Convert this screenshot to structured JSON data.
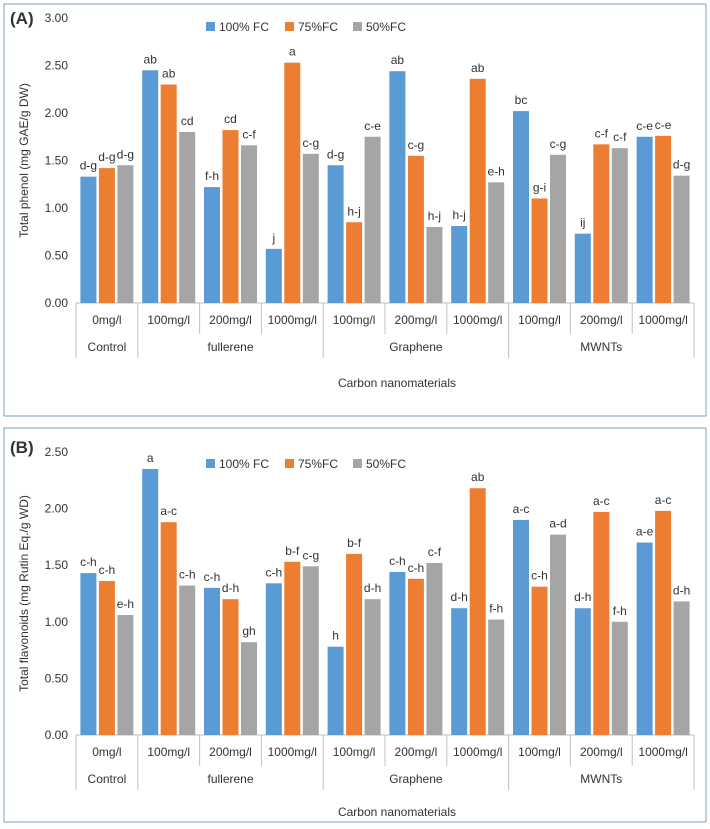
{
  "chart_data": [
    {
      "panel_label": "(A)",
      "type": "bar",
      "ylabel": "Total phenol (mg GAE/g DW)",
      "xlabel": "Carbon nanomaterials",
      "ylim": [
        0,
        3
      ],
      "yticks": [
        "0.00",
        "0.50",
        "1.00",
        "1.50",
        "2.00",
        "2.50",
        "3.00"
      ],
      "categories": [
        "0mg/l",
        "100mg/l",
        "200mg/l",
        "1000mg/l",
        "100mg/l",
        "200mg/l",
        "1000mg/l",
        "100mg/l",
        "200mg/l",
        "1000mg/l"
      ],
      "groups": [
        {
          "label": "Control",
          "count": 1
        },
        {
          "label": "fullerene",
          "count": 3
        },
        {
          "label": "Graphene",
          "count": 3
        },
        {
          "label": "MWNTs",
          "count": 3
        }
      ],
      "legend_position": "top-center",
      "series": [
        {
          "name": "100% FC",
          "color": "#5b9bd5",
          "values": [
            1.33,
            2.45,
            1.22,
            0.57,
            1.45,
            2.44,
            0.81,
            2.02,
            0.73,
            1.75
          ],
          "labels": [
            "d-g",
            "ab",
            "f-h",
            "j",
            "d-g",
            "ab",
            "h-j",
            "bc",
            "ij",
            "c-e"
          ]
        },
        {
          "name": "75%FC",
          "color": "#ed7d31",
          "values": [
            1.42,
            2.3,
            1.82,
            2.53,
            0.85,
            1.55,
            2.36,
            1.1,
            1.67,
            1.76
          ],
          "labels": [
            "d-g",
            "ab",
            "cd",
            "a",
            "h-j",
            "c-g",
            "ab",
            "g-i",
            "c-f",
            "c-e"
          ]
        },
        {
          "name": "50%FC",
          "color": "#a5a5a5",
          "values": [
            1.45,
            1.8,
            1.66,
            1.57,
            1.75,
            0.8,
            1.27,
            1.56,
            1.63,
            1.34
          ],
          "labels": [
            "d-g",
            "cd",
            "c-f",
            "c-g",
            "c-e",
            "h-j",
            "e-h",
            "c-g",
            "c-f",
            "d-g"
          ]
        }
      ]
    },
    {
      "panel_label": "(B)",
      "type": "bar",
      "ylabel": "Total flavonoids (mg Rutin Eq./g WD)",
      "xlabel": "Carbon nanomaterials",
      "ylim": [
        0,
        2.5
      ],
      "yticks": [
        "0.00",
        "0.50",
        "1.00",
        "1.50",
        "2.00",
        "2.50"
      ],
      "categories": [
        "0mg/l",
        "100mg/l",
        "200mg/l",
        "1000mg/l",
        "100mg/l",
        "200mg/l",
        "1000mg/l",
        "100mg/l",
        "200mg/l",
        "1000mg/l"
      ],
      "groups": [
        {
          "label": "Control",
          "count": 1
        },
        {
          "label": "fullerene",
          "count": 3
        },
        {
          "label": "Graphene",
          "count": 3
        },
        {
          "label": "MWNTs",
          "count": 3
        }
      ],
      "legend_position": "top-center",
      "series": [
        {
          "name": "100% FC",
          "color": "#5b9bd5",
          "values": [
            1.43,
            2.35,
            1.3,
            1.34,
            0.78,
            1.44,
            1.12,
            1.9,
            1.12,
            1.7
          ],
          "labels": [
            "c-h",
            "a",
            "c-h",
            "c-h",
            "h",
            "c-h",
            "d-h",
            "a-c",
            "d-h",
            "a-e"
          ]
        },
        {
          "name": "75%FC",
          "color": "#ed7d31",
          "values": [
            1.36,
            1.88,
            1.2,
            1.53,
            1.6,
            1.38,
            2.18,
            1.31,
            1.97,
            1.98
          ],
          "labels": [
            "c-h",
            "a-c",
            "d-h",
            "b-f",
            "b-f",
            "c-h",
            "ab",
            "c-h",
            "a-c",
            "a-c"
          ]
        },
        {
          "name": "50%FC",
          "color": "#a5a5a5",
          "values": [
            1.06,
            1.32,
            0.82,
            1.49,
            1.2,
            1.52,
            1.02,
            1.77,
            1.0,
            1.18
          ],
          "labels": [
            "e-h",
            "c-h",
            "gh",
            "c-g",
            "d-h",
            "c-f",
            "f-h",
            "a-d",
            "f-h",
            "d-h"
          ]
        }
      ]
    }
  ]
}
